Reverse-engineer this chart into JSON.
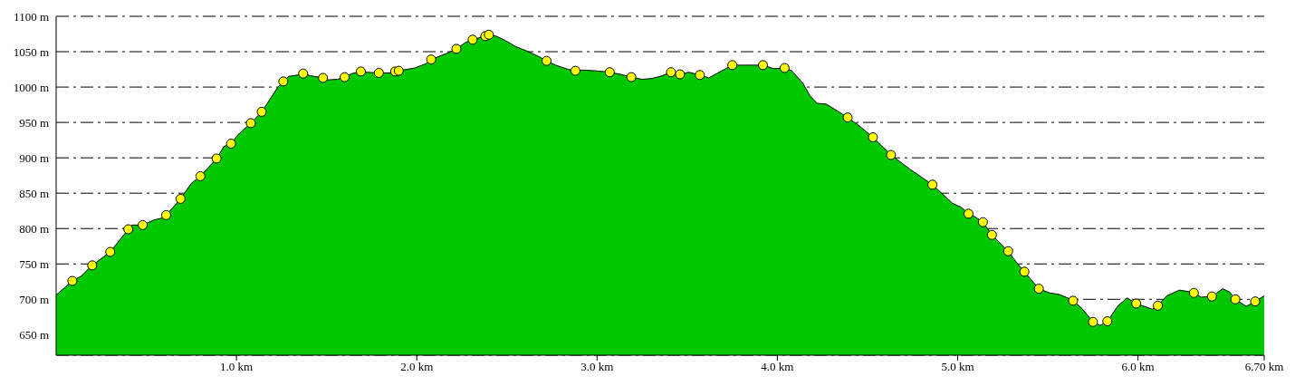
{
  "chart_data": {
    "type": "area",
    "xlim": [
      0,
      6.7
    ],
    "ylim": [
      621,
      1100
    ],
    "xticks": [
      {
        "value": 1,
        "label": "1.0 km"
      },
      {
        "value": 2,
        "label": "2.0 km"
      },
      {
        "value": 3,
        "label": "3.0 km"
      },
      {
        "value": 4,
        "label": "4.0 km"
      },
      {
        "value": 5,
        "label": "5.0 km"
      },
      {
        "value": 6,
        "label": "6.0 km"
      },
      {
        "value": 6.7,
        "label": "6.70 km"
      }
    ],
    "yticks": [
      {
        "value": 650,
        "label": "650 m"
      },
      {
        "value": 700,
        "label": "700 m"
      },
      {
        "value": 750,
        "label": "750 m"
      },
      {
        "value": 800,
        "label": "800 m"
      },
      {
        "value": 850,
        "label": "850 m"
      },
      {
        "value": 900,
        "label": "900 m"
      },
      {
        "value": 950,
        "label": "950 m"
      },
      {
        "value": 1000,
        "label": "1000 m"
      },
      {
        "value": 1050,
        "label": "1050 m"
      },
      {
        "value": 1100,
        "label": "1100 m"
      }
    ],
    "grid": "y",
    "line_style": "dashed",
    "series": [
      {
        "color": "#00c800",
        "x": [
          0,
          0.09,
          0.14,
          0.2,
          0.3,
          0.4,
          0.42,
          0.48,
          0.54,
          0.59,
          0.61,
          0.69,
          0.75,
          0.8,
          0.89,
          0.93,
          0.97,
          1.01,
          1.08,
          1.14,
          1.23,
          1.26,
          1.29,
          1.34,
          1.37,
          1.41,
          1.48,
          1.5,
          1.56,
          1.6,
          1.64,
          1.69,
          1.72,
          1.79,
          1.86,
          1.88,
          1.9,
          1.99,
          2.05,
          2.08,
          2.13,
          2.18,
          2.22,
          2.27,
          2.31,
          2.38,
          2.4,
          2.44,
          2.49,
          2.55,
          2.61,
          2.67,
          2.72,
          2.77,
          2.84,
          2.88,
          2.92,
          2.99,
          3.07,
          3.13,
          3.19,
          3.25,
          3.3,
          3.35,
          3.41,
          3.46,
          3.51,
          3.57,
          3.62,
          3.67,
          3.75,
          3.8,
          3.92,
          3.98,
          4.04,
          4.08,
          4.14,
          4.18,
          4.22,
          4.27,
          4.36,
          4.39,
          4.46,
          4.53,
          4.63,
          4.74,
          4.86,
          4.97,
          5.02,
          5.06,
          5.1,
          5.14,
          5.19,
          5.24,
          5.28,
          5.33,
          5.37,
          5.42,
          5.45,
          5.51,
          5.56,
          5.62,
          5.64,
          5.69,
          5.75,
          5.79,
          5.83,
          5.89,
          5.94,
          5.99,
          6.08,
          6.11,
          6.16,
          6.23,
          6.28,
          6.31,
          6.35,
          6.41,
          6.47,
          6.51,
          6.54,
          6.6,
          6.65,
          6.7
        ],
        "values": [
          706,
          726,
          733,
          748,
          767,
          799,
          805,
          805,
          812,
          815,
          819,
          842,
          864,
          874,
          899,
          916,
          920,
          933,
          949,
          965,
          1000,
          1008,
          1015,
          1017,
          1019,
          1016,
          1013,
          1010,
          1011,
          1014,
          1019,
          1022,
          1021,
          1020,
          1020,
          1022,
          1023,
          1027,
          1033,
          1039,
          1044,
          1049,
          1054,
          1063,
          1067,
          1072,
          1074,
          1072,
          1066,
          1057,
          1051,
          1044,
          1037,
          1031,
          1025,
          1023,
          1024,
          1023,
          1021,
          1018,
          1014,
          1011,
          1012,
          1015,
          1021,
          1018,
          1021,
          1017,
          1013,
          1020,
          1031,
          1031,
          1031,
          1026,
          1027,
          1023,
          1006,
          988,
          977,
          976,
          962,
          957,
          944,
          929,
          904,
          883,
          862,
          836,
          830,
          821,
          816,
          809,
          791,
          778,
          768,
          751,
          739,
          724,
          715,
          709,
          707,
          701,
          698,
          687,
          668,
          663,
          669,
          691,
          702,
          694,
          686,
          691,
          705,
          713,
          711,
          709,
          703,
          704,
          715,
          710,
          700,
          690,
          697,
          705
        ]
      },
      {
        "type": "scatter",
        "color": "#ffff00",
        "marker": "circle",
        "x": [
          0.09,
          0.2,
          0.3,
          0.4,
          0.48,
          0.61,
          0.69,
          0.8,
          0.89,
          0.97,
          1.08,
          1.14,
          1.26,
          1.37,
          1.48,
          1.6,
          1.69,
          1.79,
          1.88,
          1.9,
          2.08,
          2.22,
          2.31,
          2.38,
          2.4,
          2.72,
          2.88,
          3.07,
          3.19,
          3.41,
          3.46,
          3.57,
          3.75,
          3.92,
          4.04,
          4.39,
          4.53,
          4.63,
          4.86,
          5.06,
          5.14,
          5.19,
          5.28,
          5.37,
          5.45,
          5.64,
          5.75,
          5.83,
          5.99,
          6.11,
          6.31,
          6.41,
          6.54,
          6.65
        ],
        "values": [
          726,
          748,
          767,
          799,
          805,
          819,
          842,
          874,
          899,
          920,
          949,
          965,
          1008,
          1019,
          1013,
          1014,
          1022,
          1020,
          1022,
          1023,
          1039,
          1054,
          1067,
          1072,
          1074,
          1037,
          1023,
          1021,
          1014,
          1021,
          1018,
          1017,
          1031,
          1031,
          1027,
          957,
          929,
          904,
          862,
          821,
          809,
          791,
          768,
          739,
          715,
          698,
          668,
          669,
          694,
          691,
          709,
          704,
          700,
          697
        ]
      }
    ]
  }
}
